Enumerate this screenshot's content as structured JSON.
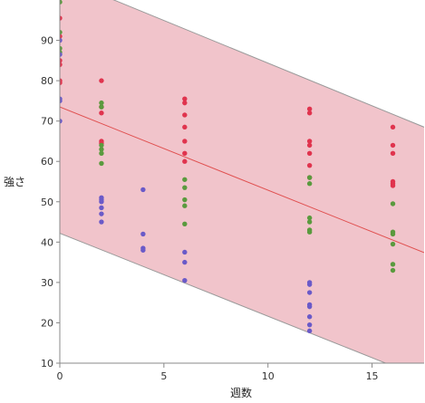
{
  "chart_data": {
    "type": "scatter",
    "title": "",
    "xlabel": "週数",
    "ylabel": "強さ",
    "xlim": [
      0,
      17.5
    ],
    "ylim": [
      10,
      100
    ],
    "x_ticks": [
      "0",
      "5",
      "10",
      "15"
    ],
    "y_ticks": [
      "10",
      "20",
      "30",
      "40",
      "50",
      "60",
      "70",
      "80",
      "90"
    ],
    "grid": false,
    "legend": "none",
    "colors": {
      "red": "#e0344e",
      "green": "#5a9a3e",
      "blue": "#6a5ac8",
      "band_fill": "#f1c4cb",
      "band_line": "#9a9a9a",
      "fit_line": "#e05050",
      "axis": "#888888"
    },
    "fit_line": {
      "x": [
        0,
        17.5
      ],
      "y": [
        73.5,
        37.4
      ]
    },
    "prediction_band": {
      "upper": {
        "x": [
          0,
          17.5
        ],
        "y": [
          105.5,
          68.5
        ]
      },
      "lower": {
        "x": [
          0,
          17.5
        ],
        "y": [
          42.2,
          6.2
        ]
      }
    },
    "series": [
      {
        "color": "red",
        "points": [
          [
            0,
            95.5
          ],
          [
            0,
            91
          ],
          [
            0,
            85
          ],
          [
            0,
            84
          ],
          [
            0,
            80
          ],
          [
            0,
            79.5
          ],
          [
            2,
            80
          ],
          [
            2,
            73.5
          ],
          [
            2,
            72
          ],
          [
            2,
            65
          ],
          [
            2,
            64.5
          ],
          [
            6,
            75.5
          ],
          [
            6,
            74.5
          ],
          [
            6,
            71.5
          ],
          [
            6,
            68.5
          ],
          [
            6,
            65
          ],
          [
            6,
            62
          ],
          [
            6,
            60
          ],
          [
            12,
            73
          ],
          [
            12,
            72
          ],
          [
            12,
            65
          ],
          [
            12,
            64
          ],
          [
            12,
            62
          ],
          [
            12,
            59
          ],
          [
            12,
            56
          ],
          [
            16,
            68.5
          ],
          [
            16,
            64
          ],
          [
            16,
            62
          ],
          [
            16,
            55
          ],
          [
            16,
            54.5
          ],
          [
            16,
            54
          ]
        ]
      },
      {
        "color": "green",
        "points": [
          [
            0,
            99.5
          ],
          [
            0,
            92
          ],
          [
            0,
            88
          ],
          [
            0,
            87
          ],
          [
            2,
            74.5
          ],
          [
            2,
            73.5
          ],
          [
            2,
            64
          ],
          [
            2,
            63
          ],
          [
            2,
            62
          ],
          [
            2,
            59.5
          ],
          [
            6,
            55.5
          ],
          [
            6,
            53.5
          ],
          [
            6,
            50.5
          ],
          [
            6,
            49
          ],
          [
            6,
            44.5
          ],
          [
            12,
            56
          ],
          [
            12,
            54.5
          ],
          [
            12,
            46
          ],
          [
            12,
            45
          ],
          [
            12,
            43
          ],
          [
            12,
            42.5
          ],
          [
            16,
            49.5
          ],
          [
            16,
            42.5
          ],
          [
            16,
            42
          ],
          [
            16,
            39.5
          ],
          [
            16,
            34.5
          ],
          [
            16,
            33
          ]
        ]
      },
      {
        "color": "blue",
        "points": [
          [
            0,
            90
          ],
          [
            0,
            86.5
          ],
          [
            0,
            75.5
          ],
          [
            0,
            75
          ],
          [
            0,
            70
          ],
          [
            2,
            51
          ],
          [
            2,
            50.5
          ],
          [
            2,
            50
          ],
          [
            2,
            48.5
          ],
          [
            2,
            47
          ],
          [
            2,
            45
          ],
          [
            4,
            53
          ],
          [
            4,
            42
          ],
          [
            4,
            38.5
          ],
          [
            4,
            38
          ],
          [
            6,
            37.5
          ],
          [
            6,
            35
          ],
          [
            6,
            30.5
          ],
          [
            12,
            30
          ],
          [
            12,
            29.5
          ],
          [
            12,
            27.5
          ],
          [
            12,
            24.5
          ],
          [
            12,
            24
          ],
          [
            12,
            21.5
          ],
          [
            12,
            19.5
          ],
          [
            12,
            18
          ]
        ]
      }
    ]
  }
}
